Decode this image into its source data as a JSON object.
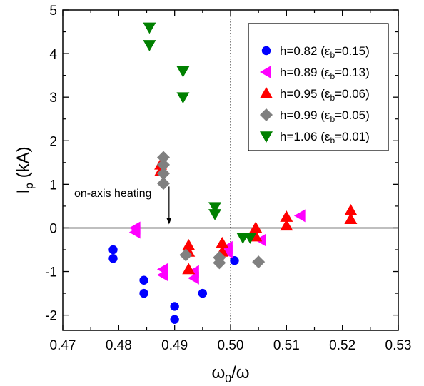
{
  "chart_data": {
    "type": "scatter",
    "xlabel": {
      "main": "ω",
      "sub": "0",
      "tail": "/ω"
    },
    "ylabel": {
      "main": "I",
      "sub": "p",
      "tail": " (kA)"
    },
    "xlim": [
      0.47,
      0.53
    ],
    "ylim": [
      -2.35,
      5
    ],
    "xticks": [
      "0.47",
      "0.48",
      "0.49",
      "0.50",
      "0.51",
      "0.52",
      "0.53"
    ],
    "yticks": [
      "-2",
      "-1",
      "0",
      "1",
      "2",
      "3",
      "4",
      "5"
    ],
    "zero_line": 0,
    "dotted_vline": 0.5,
    "annotation": {
      "text": "on-axis heating",
      "x": 0.489,
      "arrow_from_y": 0.95,
      "arrow_to_y": 0.08
    },
    "legend_position": "top-right",
    "series": [
      {
        "name": "h=0.82 (εb=0.15)",
        "legend": {
          "pre": "h=0.82 (ε",
          "sub": "b",
          "post": "=0.15)"
        },
        "marker": "circle",
        "color": "#0000ff",
        "points": [
          [
            0.479,
            -0.5
          ],
          [
            0.479,
            -0.7
          ],
          [
            0.4845,
            -1.2
          ],
          [
            0.4845,
            -1.5
          ],
          [
            0.49,
            -1.8
          ],
          [
            0.49,
            -2.1
          ],
          [
            0.495,
            -1.5
          ],
          [
            0.5007,
            -0.75
          ]
        ]
      },
      {
        "name": "h=0.89 (εb=0.13)",
        "legend": {
          "pre": "h=0.89 (ε",
          "sub": "b",
          "post": "=0.13)"
        },
        "marker": "triangle-left",
        "color": "#ff00ff",
        "points": [
          [
            0.483,
            0.0
          ],
          [
            0.483,
            -0.1
          ],
          [
            0.488,
            -0.95
          ],
          [
            0.488,
            -1.08
          ],
          [
            0.4935,
            -1.0
          ],
          [
            0.4935,
            -1.15
          ],
          [
            0.4995,
            -0.45
          ],
          [
            0.4995,
            -0.55
          ],
          [
            0.5055,
            -0.28
          ],
          [
            0.5125,
            0.28
          ]
        ]
      },
      {
        "name": "h=0.95 (εb=0.06)",
        "legend": {
          "pre": "h=0.95 (ε",
          "sub": "b",
          "post": "=0.06)"
        },
        "marker": "triangle-up",
        "color": "#ff0000",
        "points": [
          [
            0.4875,
            1.45
          ],
          [
            0.4875,
            1.3
          ],
          [
            0.4925,
            -0.4
          ],
          [
            0.4925,
            -0.55
          ],
          [
            0.4925,
            -0.95
          ],
          [
            0.4985,
            -0.35
          ],
          [
            0.4985,
            -0.55
          ],
          [
            0.5045,
            0.0
          ],
          [
            0.5045,
            -0.2
          ],
          [
            0.51,
            0.25
          ],
          [
            0.51,
            0.05
          ],
          [
            0.5215,
            0.4
          ],
          [
            0.5215,
            0.2
          ]
        ]
      },
      {
        "name": "h=0.99 (εb=0.05)",
        "legend": {
          "pre": "h=0.99 (ε",
          "sub": "b",
          "post": "=0.05)"
        },
        "marker": "diamond",
        "color": "#808080",
        "points": [
          [
            0.488,
            1.62
          ],
          [
            0.488,
            1.45
          ],
          [
            0.488,
            1.25
          ],
          [
            0.488,
            1.02
          ],
          [
            0.492,
            -0.62
          ],
          [
            0.498,
            -0.68
          ],
          [
            0.498,
            -0.8
          ],
          [
            0.505,
            -0.78
          ]
        ]
      },
      {
        "name": "h=1.06 (εb=0.01)",
        "legend": {
          "pre": "h=1.06 (ε",
          "sub": "b",
          "post": "=0.01)"
        },
        "marker": "triangle-down",
        "color": "#008000",
        "points": [
          [
            0.4855,
            4.6
          ],
          [
            0.4855,
            4.2
          ],
          [
            0.4915,
            3.6
          ],
          [
            0.4915,
            3.0
          ],
          [
            0.4972,
            0.48
          ],
          [
            0.4972,
            0.32
          ],
          [
            0.5022,
            -0.22
          ],
          [
            0.5035,
            -0.22
          ]
        ]
      }
    ]
  }
}
